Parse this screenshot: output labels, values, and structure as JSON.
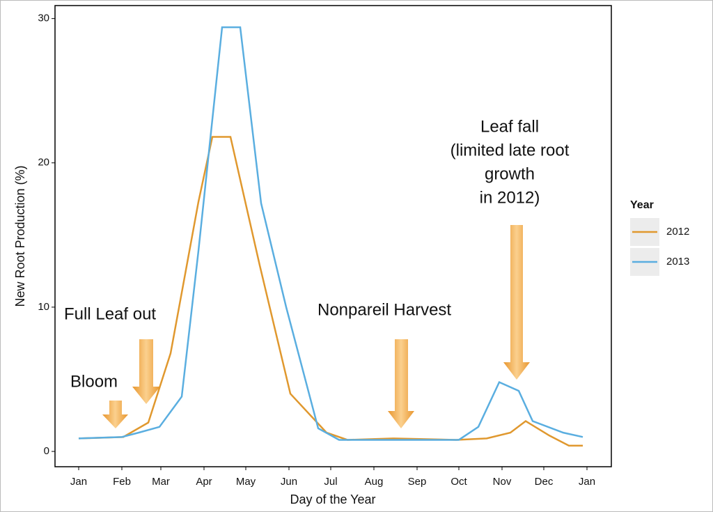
{
  "chart_data": {
    "type": "line",
    "x_label": "Day of the Year",
    "y_label": "New Root Production (%)",
    "xlim": [
      -16,
      383.5
    ],
    "xticks": [
      {
        "value": 1,
        "label": "Jan"
      },
      {
        "value": 32,
        "label": "Feb"
      },
      {
        "value": 60,
        "label": "Mar"
      },
      {
        "value": 91,
        "label": "Apr"
      },
      {
        "value": 121,
        "label": "May"
      },
      {
        "value": 152,
        "label": "Jun"
      },
      {
        "value": 182,
        "label": "Jul"
      },
      {
        "value": 213,
        "label": "Aug"
      },
      {
        "value": 244,
        "label": "Sep"
      },
      {
        "value": 274,
        "label": "Oct"
      },
      {
        "value": 305,
        "label": "Nov"
      },
      {
        "value": 335,
        "label": "Dec"
      },
      {
        "value": 366,
        "label": "Jan"
      }
    ],
    "ylim": [
      -1.06,
      30.9
    ],
    "yticks": [
      0,
      10,
      20,
      30
    ],
    "grid": false,
    "legend_title": "Year",
    "legend_position": "right",
    "series": [
      {
        "name": "2012",
        "color": "#e0982e",
        "x": [
          1,
          33,
          51,
          67,
          87,
          97,
          110,
          131,
          153,
          179,
          194,
          227,
          272,
          294,
          311,
          322,
          339,
          353,
          363
        ],
        "values": [
          0.9,
          1.0,
          2.0,
          6.8,
          17.3,
          21.8,
          21.8,
          12.9,
          4.0,
          1.3,
          0.8,
          0.9,
          0.8,
          0.9,
          1.3,
          2.1,
          1.1,
          0.4,
          0.4
        ]
      },
      {
        "name": "2013",
        "color": "#5aaee0",
        "x": [
          1,
          32,
          44,
          59,
          75,
          87,
          104,
          117,
          132,
          150,
          173,
          188,
          274,
          288,
          303,
          317,
          327,
          349,
          363
        ],
        "values": [
          0.9,
          1.0,
          1.3,
          1.7,
          3.8,
          13.9,
          29.4,
          29.4,
          17.2,
          10.0,
          1.6,
          0.8,
          0.8,
          1.7,
          4.8,
          4.2,
          2.1,
          1.3,
          1.0
        ]
      }
    ],
    "annotations": [
      "Full Leaf out",
      "Bloom",
      "Nonpareil Harvest",
      "Leaf fall",
      "(limited late root",
      "growth",
      "in 2012)"
    ]
  }
}
